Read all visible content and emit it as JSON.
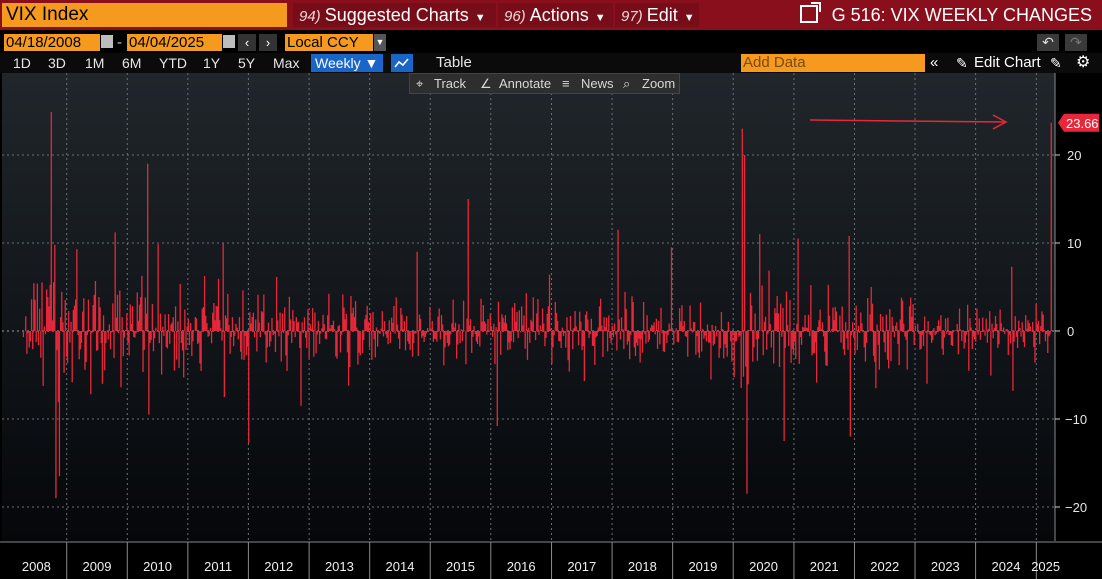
{
  "titlebar": {
    "ticker": "VIX Index",
    "menus": [
      {
        "num": "94)",
        "label": "Suggested Charts"
      },
      {
        "num": "96)",
        "label": "Actions"
      },
      {
        "num": "97)",
        "label": "Edit"
      }
    ],
    "screen_title": "G 516: VIX WEEKLY CHANGES"
  },
  "dates": {
    "start": "04/18/2008",
    "separator": "-",
    "end": "04/04/2025",
    "currency": "Local CCY"
  },
  "periods": [
    "1D",
    "3D",
    "1M",
    "6M",
    "YTD",
    "1Y",
    "5Y",
    "Max"
  ],
  "frequency": "Weekly ▼",
  "table_label": "Table",
  "add_data_placeholder": "Add Data",
  "edit_chart_label": "Edit Chart",
  "toolbar": {
    "track": "Track",
    "annotate": "Annotate",
    "news": "News",
    "zoom": "Zoom"
  },
  "colors": {
    "series": "#e8283a",
    "title_bar": "#8a0f1c",
    "input_bg": "#f59a1e",
    "active_blue": "#1a66c8"
  },
  "icons": [
    "calendar-icon",
    "chevron-left-icon",
    "chevron-right-icon",
    "undo-icon",
    "redo-icon",
    "line-chart-icon",
    "double-chevron-left-icon",
    "pencil-icon",
    "chart-edit-icon",
    "gear-icon",
    "crosshair-icon",
    "annotate-icon",
    "news-icon",
    "magnifier-icon",
    "external-link-icon"
  ],
  "chart_data": {
    "type": "bar",
    "title": "",
    "xlabel": "",
    "ylabel": "",
    "x_tick_labels": [
      "2008",
      "2009",
      "2010",
      "2011",
      "2012",
      "2013",
      "2014",
      "2015",
      "2016",
      "2017",
      "2018",
      "2019",
      "2020",
      "2021",
      "2022",
      "2023",
      "2024",
      "2025"
    ],
    "y_ticks": [
      -20,
      -10,
      0,
      10,
      20
    ],
    "ylim": [
      -24,
      26
    ],
    "grid": true,
    "last_value_label": "23.66",
    "spikes": [
      {
        "date": "2008-10-03",
        "value": 24.9
      },
      {
        "date": "2008-10-24",
        "value": 9.8
      },
      {
        "date": "2008-10-31",
        "value": -19.0
      },
      {
        "date": "2008-11-21",
        "value": -16.5
      },
      {
        "date": "2009-03-06",
        "value": 9.3
      },
      {
        "date": "2010-05-07",
        "value": 19.0
      },
      {
        "date": "2010-05-14",
        "value": -9.5
      },
      {
        "date": "2011-08-05",
        "value": 10.0
      },
      {
        "date": "2011-08-12",
        "value": -7.5
      },
      {
        "date": "2012-11-16",
        "value": -8.5
      },
      {
        "date": "2014-10-17",
        "value": 9.0
      },
      {
        "date": "2015-08-21",
        "value": 15.0
      },
      {
        "date": "2016-02-12",
        "value": -10.8
      },
      {
        "date": "2018-02-09",
        "value": 11.5
      },
      {
        "date": "2018-12-24",
        "value": 9.5
      },
      {
        "date": "2020-02-28",
        "value": 23.0
      },
      {
        "date": "2020-03-13",
        "value": 20.0
      },
      {
        "date": "2020-03-27",
        "value": -18.5
      },
      {
        "date": "2020-06-12",
        "value": 11.0
      },
      {
        "date": "2020-11-06",
        "value": -12.5
      },
      {
        "date": "2021-01-29",
        "value": 10.5
      },
      {
        "date": "2021-12-03",
        "value": 10.8
      },
      {
        "date": "2021-12-10",
        "value": -12.0
      },
      {
        "date": "2022-05-13",
        "value": -6.5
      },
      {
        "date": "2023-03-17",
        "value": -6.0
      },
      {
        "date": "2024-08-09",
        "value": 7.3
      },
      {
        "date": "2024-08-16",
        "value": -6.8
      },
      {
        "date": "2025-03-14",
        "value": -2.5
      },
      {
        "date": "2025-04-04",
        "value": 23.66
      }
    ]
  }
}
